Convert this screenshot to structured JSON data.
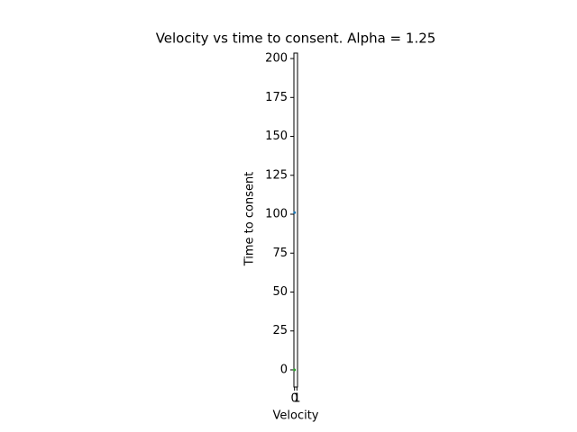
{
  "chart_data": {
    "type": "scatter",
    "title": "Velocity vs time to consent. Alpha = 1.25",
    "x_label": "Velocity",
    "y_label": "Time to consent",
    "x": [
      0,
      0
    ],
    "values": [
      101,
      0
    ],
    "colors": [
      "#1f77b4",
      "#2ca02c"
    ],
    "xlim": [
      -0.25,
      1.25
    ],
    "xticks": [
      0,
      1
    ],
    "ylim": [
      -11,
      203.5
    ],
    "yticks": [
      0,
      25,
      50,
      75,
      100,
      125,
      150,
      175,
      200
    ]
  }
}
